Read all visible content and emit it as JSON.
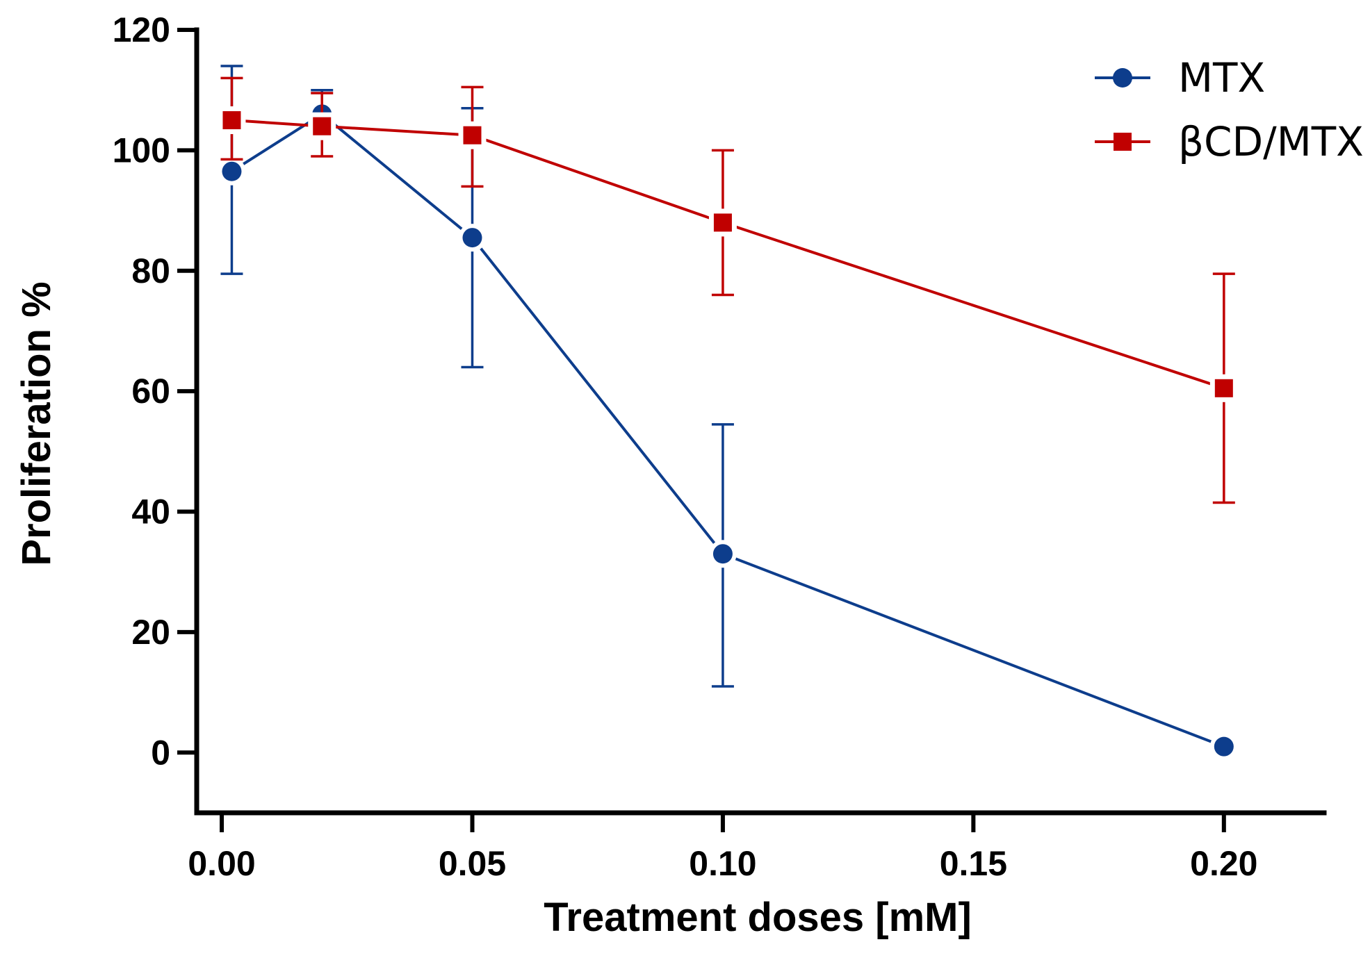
{
  "chart_data": {
    "type": "line",
    "xlabel": "Treatment doses [mM]",
    "ylabel": "Proliferation %",
    "xlim": [
      -0.005,
      0.22
    ],
    "ylim": [
      -10,
      120
    ],
    "x_ticks": [
      0.0,
      0.05,
      0.1,
      0.15,
      0.2
    ],
    "x_tick_labels": [
      "0.00",
      "0.05",
      "0.10",
      "0.15",
      "0.20"
    ],
    "y_ticks": [
      0,
      20,
      40,
      60,
      80,
      100,
      120
    ],
    "y_tick_labels": [
      "0",
      "20",
      "40",
      "60",
      "80",
      "100",
      "120"
    ],
    "legend_position": "top-right",
    "grid": false,
    "series": [
      {
        "name": "MTX",
        "color": "#0d3d8c",
        "marker": "circle",
        "x": [
          0.002,
          0.02,
          0.05,
          0.1,
          0.2
        ],
        "y": [
          96.5,
          106,
          85.5,
          33,
          1
        ],
        "err_low": [
          79.5,
          102,
          64,
          11,
          null
        ],
        "err_high": [
          114,
          110,
          107,
          54.5,
          null
        ]
      },
      {
        "name": "βCD/MTX",
        "color": "#c00000",
        "marker": "square",
        "x": [
          0.002,
          0.02,
          0.05,
          0.1,
          0.2
        ],
        "y": [
          105,
          104,
          102.5,
          88,
          60.5
        ],
        "err_low": [
          98.5,
          99,
          94,
          76,
          41.5
        ],
        "err_high": [
          112,
          109.5,
          110.5,
          100,
          79.5
        ]
      }
    ]
  }
}
